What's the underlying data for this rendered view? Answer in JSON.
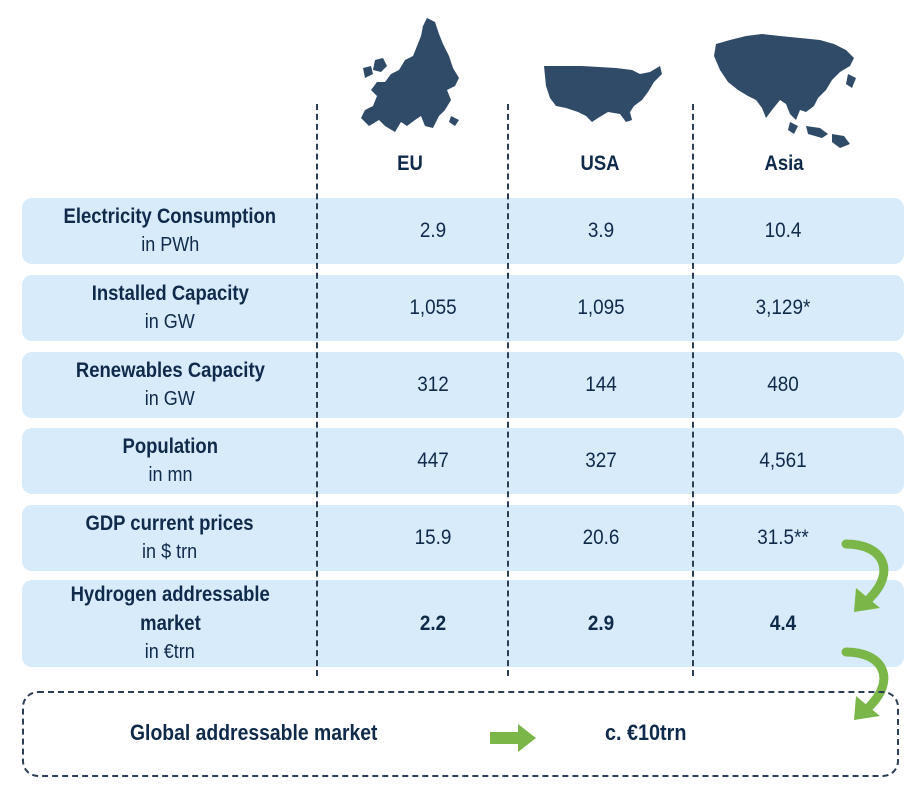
{
  "columns": [
    {
      "name": "EU",
      "map_icon": "eu-map-icon"
    },
    {
      "name": "USA",
      "map_icon": "usa-map-icon"
    },
    {
      "name": "Asia",
      "map_icon": "asia-map-icon"
    }
  ],
  "rows": [
    {
      "title": "Electricity Consumption",
      "unit": "in PWh",
      "eu": "2.9",
      "usa": "3.9",
      "asia": "10.4",
      "bold": false
    },
    {
      "title": "Installed Capacity",
      "unit": "in GW",
      "eu": "1,055",
      "usa": "1,095",
      "asia": "3,129*",
      "bold": false
    },
    {
      "title": "Renewables Capacity",
      "unit": "in GW",
      "eu": "312",
      "usa": "144",
      "asia": "480",
      "bold": false
    },
    {
      "title": "Population",
      "unit": "in mn",
      "eu": "447",
      "usa": "327",
      "asia": "4,561",
      "bold": false
    },
    {
      "title": "GDP current prices",
      "unit": "in $ trn",
      "eu": "15.9",
      "usa": "20.6",
      "asia": "31.5**",
      "bold": false
    },
    {
      "title": "Hydrogen addressable",
      "title2": "market",
      "unit": "in €trn",
      "eu": "2.2",
      "usa": "2.9",
      "asia": "4.4",
      "bold": true
    }
  ],
  "global": {
    "label": "Global addressable market",
    "value": "c. €10trn"
  },
  "colors": {
    "navy": "#0f2a4a",
    "map": "#2f4b68",
    "row_bg": "#d7ebfa",
    "arrow_green": "#7ab648"
  },
  "chart_data": {
    "type": "table",
    "columns": [
      "EU",
      "USA",
      "Asia"
    ],
    "rows": [
      {
        "metric": "Electricity Consumption",
        "unit": "in PWh",
        "values": [
          "2.9",
          "3.9",
          "10.4"
        ]
      },
      {
        "metric": "Installed Capacity",
        "unit": "in GW",
        "values": [
          "1,055",
          "1,095",
          "3,129*"
        ]
      },
      {
        "metric": "Renewables Capacity",
        "unit": "in GW",
        "values": [
          "312",
          "144",
          "480"
        ]
      },
      {
        "metric": "Population",
        "unit": "in mn",
        "values": [
          "447",
          "327",
          "4,561"
        ]
      },
      {
        "metric": "GDP current prices",
        "unit": "in $ trn",
        "values": [
          "15.9",
          "20.6",
          "31.5**"
        ]
      },
      {
        "metric": "Hydrogen addressable market",
        "unit": "in €trn",
        "values": [
          "2.2",
          "2.9",
          "4.4"
        ]
      }
    ],
    "total": {
      "label": "Global addressable market",
      "value": "c. €10trn"
    }
  }
}
